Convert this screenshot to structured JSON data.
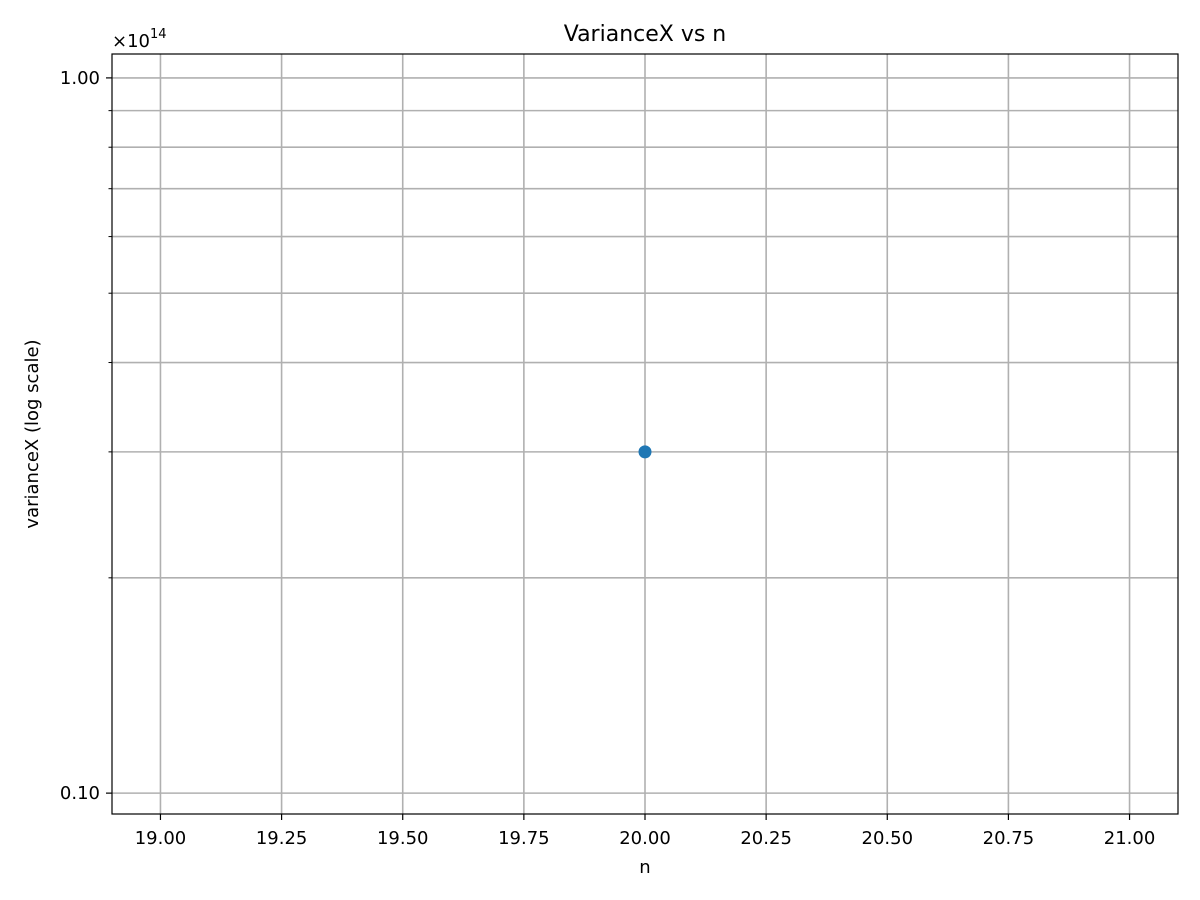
{
  "chart_data": {
    "type": "scatter",
    "title": "VarianceX vs n",
    "xlabel": "n",
    "ylabel": "varianceX (log scale)",
    "y_scale": "log",
    "y_offset_label": {
      "base": "×10",
      "exponent": "14"
    },
    "xlim": [
      18.9,
      21.1
    ],
    "ylim": [
      0.0935,
      1.08
    ],
    "x_ticks": [
      19.0,
      19.25,
      19.5,
      19.75,
      20.0,
      20.25,
      20.5,
      20.75,
      21.0
    ],
    "x_tick_labels": [
      "19.00",
      "19.25",
      "19.50",
      "19.75",
      "20.00",
      "20.25",
      "20.50",
      "20.75",
      "21.00"
    ],
    "y_ticks": [
      0.1,
      1.0
    ],
    "y_tick_labels": [
      "0.10",
      "1.00"
    ],
    "y_minor_ticks": [
      0.2,
      0.3,
      0.4,
      0.5,
      0.6,
      0.7,
      0.8,
      0.9
    ],
    "grid": true,
    "colors": {
      "point": "#1f77b4",
      "grid": "#b0b0b0",
      "axes": "#000000"
    },
    "points": [
      {
        "x": 20.0,
        "y": 0.3
      }
    ]
  }
}
